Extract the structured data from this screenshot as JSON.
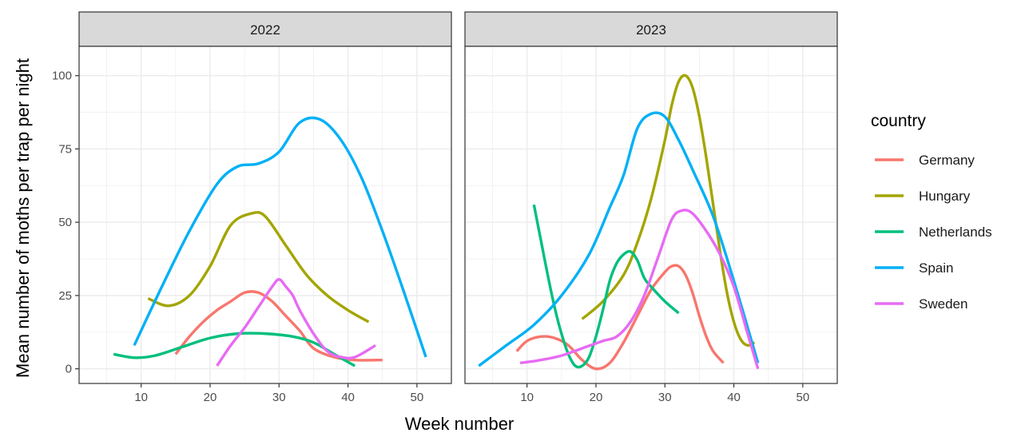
{
  "chart_data": {
    "type": "line",
    "xlabel": "Week number",
    "ylabel": "Mean number of moths per trap per night",
    "xlim": [
      1,
      55
    ],
    "ylim": [
      -5,
      110
    ],
    "x_ticks": [
      10,
      20,
      30,
      40,
      50
    ],
    "y_ticks": [
      0,
      25,
      50,
      75,
      100
    ],
    "grid": true,
    "legend": {
      "title": "country",
      "placement": "right",
      "entries": [
        "Germany",
        "Hungary",
        "Netherlands",
        "Spain",
        "Sweden"
      ]
    },
    "colors": {
      "Germany": "#F8766D",
      "Hungary": "#A3A500",
      "Netherlands": "#00BF7D",
      "Spain": "#00B0F6",
      "Sweden": "#E76BF3"
    },
    "panels": [
      {
        "strip": "2022",
        "series": [
          {
            "country": "Spain",
            "x": [
              9,
              13,
              17,
              21,
              24,
              27,
              30,
              33,
              36,
              39,
              42,
              45,
              48,
              51.3
            ],
            "y": [
              8,
              28,
              47,
              63,
              69,
              70,
              74,
              84,
              85,
              78,
              65,
              47,
              27,
              4
            ]
          },
          {
            "country": "Hungary",
            "x": [
              11,
              14,
              17,
              20,
              23,
              26,
              28,
              31,
              34,
              37,
              40,
              43
            ],
            "y": [
              24,
              21.5,
              25,
              35,
              49,
              53,
              52,
              42,
              32,
              25,
              20,
              16
            ]
          },
          {
            "country": "Germany",
            "x": [
              15,
              17,
              19,
              21,
              23,
              25,
              27,
              29,
              31,
              33,
              35,
              38,
              41,
              45
            ],
            "y": [
              5,
              11,
              16,
              20,
              23,
              26,
              26,
              23,
              18,
              13,
              7,
              4,
              3,
              3
            ]
          },
          {
            "country": "Netherlands",
            "x": [
              6,
              9,
              12,
              16,
              20,
              24,
              28,
              32,
              35,
              38,
              41
            ],
            "y": [
              5,
              3.8,
              4.5,
              7.5,
              10.5,
              12,
              12,
              11,
              9,
              5,
              1
            ]
          },
          {
            "country": "Sweden",
            "x": [
              21,
              23,
              25,
              27,
              29,
              30,
              31,
              32,
              33,
              35,
              37,
              39,
              41,
              44
            ],
            "y": [
              1,
              8,
              14,
              21,
              28,
              30.5,
              28,
              25,
              20,
              12,
              6,
              4,
              4,
              8
            ]
          }
        ]
      },
      {
        "strip": "2023",
        "series": [
          {
            "country": "Spain",
            "x": [
              3,
              7,
              11,
              15,
              19,
              22,
              24,
              26,
              28,
              30,
              32,
              34,
              37,
              40,
              43.5
            ],
            "y": [
              1,
              8,
              15,
              25,
              39,
              55,
              66,
              82,
              87,
              86,
              78,
              68,
              52,
              30,
              2
            ]
          },
          {
            "country": "Hungary",
            "x": [
              18,
              21,
              24,
              26,
              28,
              30,
              31,
              32,
              33,
              34,
              35,
              36,
              37,
              38,
              39,
              40,
              41,
              42,
              43
            ],
            "y": [
              17,
              23,
              32,
              43,
              58,
              78,
              90,
              98,
              100,
              96,
              86,
              72,
              56,
              40,
              26,
              16,
              10,
              8,
              9
            ]
          },
          {
            "country": "Netherlands",
            "x": [
              11,
              12,
              13,
              14,
              15,
              16,
              17,
              18,
              19,
              20,
              21,
              22,
              23,
              24,
              25,
              26,
              27,
              28,
              30,
              32
            ],
            "y": [
              56,
              44,
              32,
              21,
              12,
              5,
              1,
              1,
              4,
              11,
              20,
              30,
              36,
              39,
              40,
              37,
              31,
              28,
              23,
              19
            ]
          },
          {
            "country": "Germany",
            "x": [
              8.5,
              10,
              12,
              14,
              16,
              18,
              20,
              22,
              24,
              26,
              28,
              30,
              31,
              32,
              33,
              34,
              35,
              36,
              37,
              38.5
            ],
            "y": [
              6,
              9.5,
              11,
              10.5,
              8,
              3,
              0,
              2,
              9,
              18,
              27,
              33,
              35,
              35,
              32,
              26,
              18,
              11,
              6,
              2
            ]
          },
          {
            "country": "Sweden",
            "x": [
              9,
              12,
              15,
              18,
              21,
              23,
              25,
              27,
              29,
              31,
              32.5,
              34,
              36,
              38,
              40,
              42,
              43.5
            ],
            "y": [
              2,
              3,
              4.5,
              7,
              9.5,
              11,
              16,
              25,
              38,
              51,
              54,
              53,
              47,
              39,
              28,
              12,
              0
            ]
          }
        ]
      }
    ]
  }
}
